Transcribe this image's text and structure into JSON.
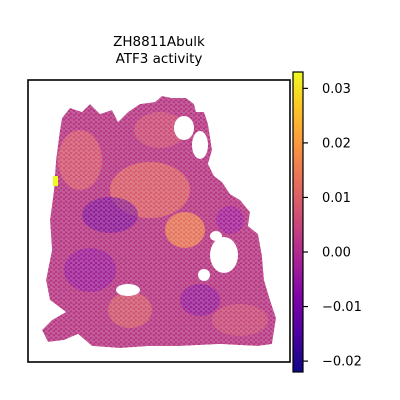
{
  "chart_data": {
    "type": "scatter",
    "subtype": "spatial-hexbin",
    "title_lines": [
      "ZH8811Abulk",
      "ATF3 activity"
    ],
    "colormap": "plasma",
    "colorbar": {
      "vmin": -0.022,
      "vmax": 0.033,
      "ticks": [
        0.03,
        0.02,
        0.01,
        0.0,
        -0.01,
        -0.02
      ],
      "tick_labels": [
        "0.03",
        "0.02",
        "0.01",
        "0.00",
        "−0.01",
        "−0.02"
      ]
    },
    "axes": {
      "xticks": false,
      "yticks": false,
      "grid": false,
      "frame": true
    },
    "value_range": [
      -0.022,
      0.033
    ],
    "typical_value": 0.002
  }
}
